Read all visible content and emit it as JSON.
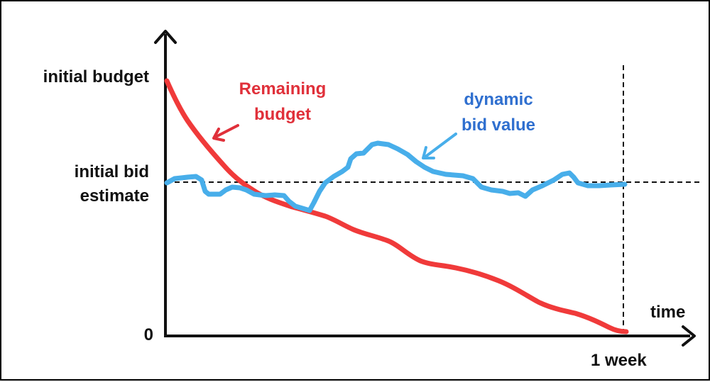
{
  "y_axis": {
    "top_label": "initial budget",
    "mid_label_line1": "initial bid",
    "mid_label_line2": "estimate",
    "zero_label": "0"
  },
  "x_axis": {
    "title": "time",
    "end_label": "1 week"
  },
  "annotations": {
    "remaining": {
      "line1": "Remaining",
      "line2": "budget",
      "color": "#e0303a"
    },
    "dynamic": {
      "line1": "dynamic",
      "line2": "bid value",
      "color": "#2f6fcf"
    }
  },
  "colors": {
    "remaining_curve": "#f03a3a",
    "bid_curve": "#48aeea",
    "axis": "#111111"
  }
}
